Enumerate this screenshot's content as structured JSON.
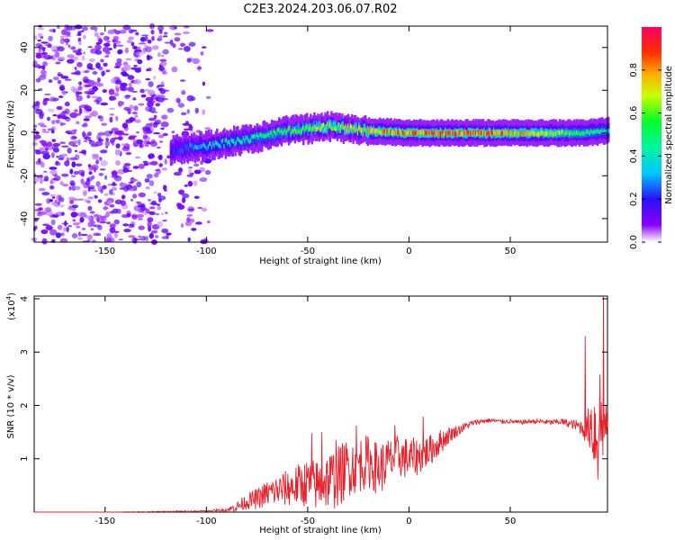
{
  "title": "C2E3.2024.203.06.07.R02",
  "chart_data": [
    {
      "type": "heatmap",
      "description": "Spectrogram: frequency vs height, color = normalized spectral amplitude",
      "xlabel": "Height of straight line (km)",
      "ylabel": "Frequency (Hz)",
      "xlim": [
        -185,
        98
      ],
      "ylim": [
        -51,
        50
      ],
      "xticks": [
        -150,
        -100,
        -50,
        0,
        50
      ],
      "yticks": [
        -40,
        -20,
        0,
        20,
        40
      ],
      "colorbar": {
        "label": "Normalized spectral amplitude",
        "range": [
          0.0,
          1.0
        ],
        "ticks": [
          0.0,
          0.2,
          0.4,
          0.6,
          0.8
        ],
        "colors": [
          "#ffffff",
          "#8a00ff",
          "#1a1aff",
          "#00e5ff",
          "#00ff3c",
          "#f5ff00",
          "#ff8000",
          "#ff0000",
          "#ff0050"
        ]
      },
      "features": [
        {
          "region": "noise",
          "x_range": [
            -185,
            -98
          ],
          "y_range": [
            -51,
            50
          ],
          "amplitude": 0.15
        },
        {
          "region": "signal_band",
          "x_range": [
            -118,
            98
          ],
          "center_hz": [
            [
              -118,
              -8
            ],
            [
              -100,
              -6
            ],
            [
              -80,
              -3
            ],
            [
              -60,
              1
            ],
            [
              -40,
              3
            ],
            [
              -20,
              1
            ],
            [
              0,
              0
            ],
            [
              20,
              0
            ],
            [
              50,
              0
            ],
            [
              85,
              0
            ],
            [
              98,
              1
            ]
          ],
          "peak_amplitude": [
            [
              -118,
              0.2
            ],
            [
              -95,
              0.4
            ],
            [
              -60,
              0.55
            ],
            [
              -30,
              0.7
            ],
            [
              -10,
              0.8
            ],
            [
              40,
              0.85
            ],
            [
              80,
              0.55
            ],
            [
              98,
              0.45
            ]
          ]
        }
      ]
    },
    {
      "type": "line",
      "xlabel": "Height of straight line (km)",
      "ylabel": "SNR (10 * v/v)",
      "yscale_label": "(x10",
      "yscale_exp": "4",
      "yscale_close": ")",
      "xlim": [
        -185,
        98
      ],
      "ylim": [
        0,
        4.05
      ],
      "xticks": [
        -150,
        -100,
        -50,
        0,
        50
      ],
      "yticks": [
        1,
        2,
        3,
        4
      ],
      "series": [
        {
          "color": "#e8202a",
          "x": [
            -185,
            -150,
            -120,
            -100,
            -90,
            -85,
            -80,
            -75,
            -70,
            -65,
            -60,
            -55,
            -50,
            -45,
            -40,
            -35,
            -30,
            -25,
            -20,
            -15,
            -10,
            -5,
            0,
            5,
            10,
            15,
            20,
            25,
            30,
            35,
            40,
            45,
            50,
            55,
            60,
            65,
            70,
            75,
            80,
            85,
            88,
            90,
            92,
            94,
            96,
            98
          ],
          "values": [
            0.0,
            0.0,
            0.01,
            0.02,
            0.04,
            0.1,
            0.2,
            0.25,
            0.35,
            0.4,
            0.45,
            0.5,
            0.55,
            0.5,
            0.6,
            0.65,
            0.85,
            0.9,
            0.95,
            0.8,
            0.95,
            1.05,
            1.0,
            1.05,
            1.15,
            1.3,
            1.45,
            1.55,
            1.65,
            1.7,
            1.72,
            1.7,
            1.7,
            1.68,
            1.7,
            1.7,
            1.68,
            1.7,
            1.65,
            1.6,
            1.55,
            1.7,
            1.5,
            1.7,
            1.6,
            1.6
          ],
          "jitter": [
            0.0,
            0.0,
            0.01,
            0.01,
            0.03,
            0.1,
            0.15,
            0.2,
            0.25,
            0.3,
            0.35,
            0.4,
            0.45,
            0.5,
            0.55,
            0.6,
            0.55,
            0.55,
            0.5,
            0.5,
            0.45,
            0.4,
            0.4,
            0.35,
            0.3,
            0.25,
            0.15,
            0.1,
            0.06,
            0.05,
            0.04,
            0.04,
            0.04,
            0.04,
            0.04,
            0.05,
            0.05,
            0.06,
            0.08,
            0.15,
            0.3,
            0.6,
            1.0,
            1.4,
            0.6,
            0.3
          ],
          "peaks": [
            [
              -48,
              1.48
            ],
            [
              -43,
              1.5
            ],
            [
              -36,
              1.35
            ],
            [
              -26,
              1.62
            ],
            [
              -7,
              1.63
            ],
            [
              7,
              1.79
            ],
            [
              87,
              3.3
            ],
            [
              91,
              1.3
            ],
            [
              96,
              4.05
            ]
          ]
        }
      ]
    }
  ]
}
